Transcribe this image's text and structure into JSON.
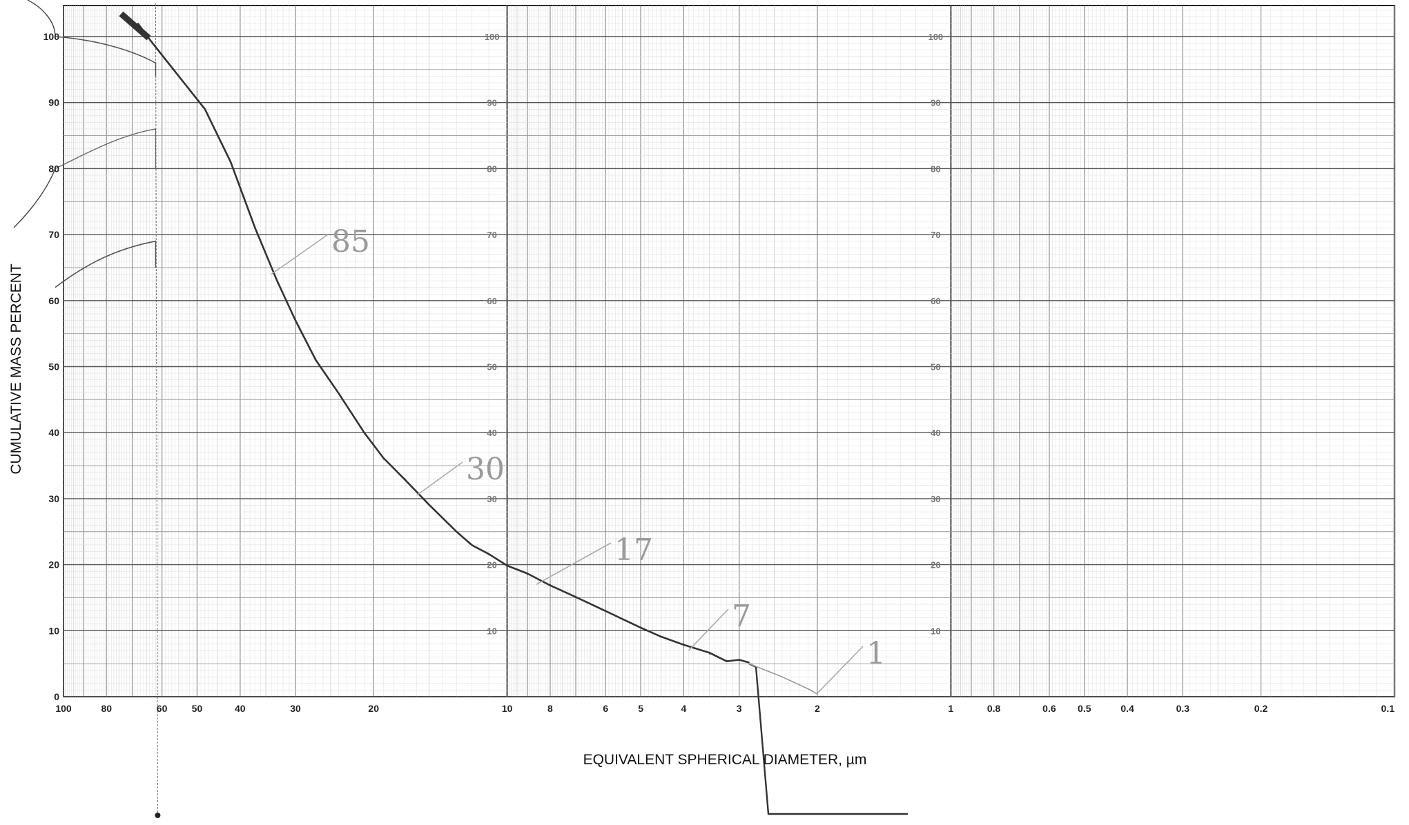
{
  "chart_data": {
    "type": "line",
    "xlabel": "EQUIVALENT SPHERICAL DIAMETER, µm",
    "ylabel": "CUMULATIVE MASS PERCENT",
    "x_scale": "log",
    "x_reversed": true,
    "xlim": [
      100,
      0.1
    ],
    "ylim": [
      0,
      105
    ],
    "grid": true,
    "x_ticks": [
      "100",
      "80",
      "60",
      "50",
      "40",
      "30",
      "20",
      "10",
      "8",
      "6",
      "5",
      "4",
      "3",
      "2",
      "1",
      "0.8",
      "0.6",
      "0.5",
      "0.4",
      "0.3",
      "0.2",
      "0.1"
    ],
    "y_ticks": [
      "0",
      "10",
      "20",
      "30",
      "40",
      "50",
      "60",
      "70",
      "80",
      "90",
      "100"
    ],
    "inner_y_ticks": [
      "10",
      "20",
      "30",
      "40",
      "50",
      "60",
      "70",
      "80",
      "90",
      "100"
    ],
    "series": [
      {
        "color": "#333333",
        "x": [
          68,
          63,
          55,
          48,
          42,
          37,
          33,
          30,
          27,
          24,
          21,
          19,
          17,
          15,
          13,
          12,
          11,
          10,
          9,
          8,
          7,
          6,
          5,
          4.5,
          4,
          3.5,
          3.2,
          3.0,
          2.85
        ],
        "y": [
          102,
          99,
          94,
          89,
          81,
          71,
          63,
          57,
          51,
          46,
          40,
          36,
          33,
          29,
          25,
          23,
          21.5,
          20,
          18.5,
          17,
          15,
          13,
          10.5,
          9,
          8,
          6.5,
          5.5,
          5.5,
          5.2
        ]
      },
      {
        "color": "#999999",
        "x": [
          2.85,
          2.4,
          2.1,
          2.0
        ],
        "y": [
          5.0,
          3.0,
          1.2,
          0.4
        ]
      }
    ],
    "annotations": [
      "85",
      "30",
      "17",
      "7",
      "1"
    ]
  }
}
